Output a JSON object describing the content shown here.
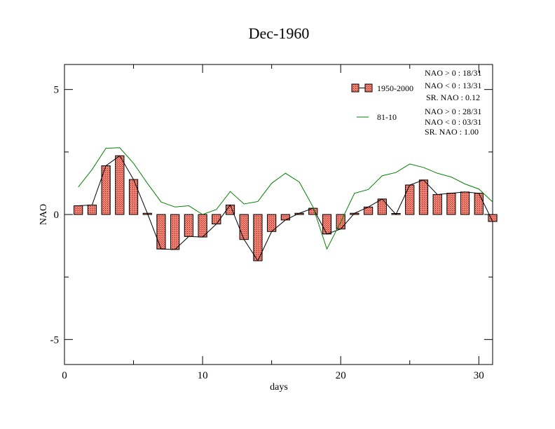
{
  "chart_data": {
    "type": "bar",
    "title": "Dec-1960",
    "xlabel": "days",
    "ylabel": "NAO",
    "xlim": [
      0,
      31
    ],
    "ylim": [
      -6,
      6
    ],
    "x_ticks": [
      0,
      10,
      20,
      30
    ],
    "y_ticks": [
      -5,
      0,
      5
    ],
    "grid": false,
    "legend_position": "top-right",
    "series": [
      {
        "name": "1950-2000",
        "kind": "bar+line",
        "color": "#fa8072",
        "line_color": "#000000",
        "x": [
          1,
          2,
          3,
          4,
          5,
          6,
          7,
          8,
          9,
          10,
          11,
          12,
          13,
          14,
          15,
          16,
          17,
          18,
          19,
          20,
          21,
          22,
          23,
          24,
          25,
          26,
          27,
          28,
          29,
          30,
          31
        ],
        "values": [
          0.35,
          0.38,
          1.95,
          2.35,
          1.4,
          0.05,
          -1.38,
          -1.4,
          -0.88,
          -0.9,
          -0.38,
          0.38,
          -1.0,
          -1.85,
          -0.68,
          -0.22,
          0.05,
          0.25,
          -0.78,
          -0.58,
          0.05,
          0.3,
          0.62,
          0.0,
          1.18,
          1.38,
          0.8,
          0.85,
          0.9,
          0.85,
          -0.28
        ]
      },
      {
        "name": "81-10",
        "kind": "line",
        "color": "#008000",
        "x": [
          1,
          2,
          3,
          4,
          5,
          6,
          7,
          8,
          9,
          10,
          11,
          12,
          13,
          14,
          15,
          16,
          17,
          18,
          19,
          20,
          21,
          22,
          23,
          24,
          25,
          26,
          27,
          28,
          29,
          30,
          31
        ],
        "values": [
          1.1,
          1.8,
          2.65,
          2.67,
          2.05,
          1.25,
          0.5,
          0.3,
          0.35,
          0.0,
          0.2,
          0.92,
          0.42,
          0.52,
          1.25,
          1.65,
          1.3,
          0.3,
          -1.38,
          -0.3,
          0.85,
          1.0,
          1.55,
          1.68,
          2.02,
          1.88,
          1.65,
          1.5,
          1.22,
          1.02,
          0.5
        ]
      }
    ],
    "stats": [
      {
        "gt": "NAO > 0 : 18/31",
        "lt": "NAO < 0 : 13/31",
        "sr": "SR. NAO :  0.12"
      },
      {
        "gt": "NAO > 0 : 28/31",
        "lt": "NAO < 0 : 03/31",
        "sr": "SR. NAO :  1.00"
      }
    ]
  }
}
